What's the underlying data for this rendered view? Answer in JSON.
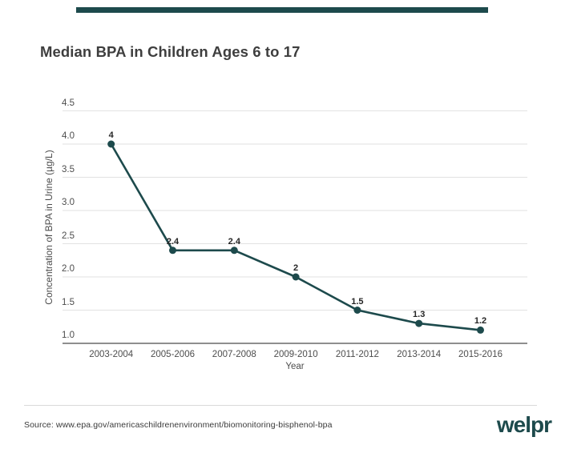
{
  "colors": {
    "accent": "#1d4a4c",
    "title_text": "#3e3e3e",
    "axis_text": "#4d4d4d",
    "grid_line": "#e2e2e2",
    "axis_line": "#8f8f8f",
    "point_label": "#262626"
  },
  "header": {
    "title": "Median BPA in Children Ages 6 to 17"
  },
  "chart_data": {
    "type": "line",
    "title": "Median BPA in Children Ages 6 to 17",
    "categories": [
      "2003-2004",
      "2005-2006",
      "2007-2008",
      "2009-2010",
      "2011-2012",
      "2013-2014",
      "2015-2016"
    ],
    "values": [
      4,
      2.4,
      2.4,
      2,
      1.5,
      1.3,
      1.2
    ],
    "point_labels": [
      "4",
      "2.4",
      "2.4",
      "2",
      "1.5",
      "1.3",
      "1.2"
    ],
    "xlabel": "Year",
    "ylabel": "Concentration of BPA in Urine (µg/L)",
    "ylim": [
      1.0,
      4.5
    ],
    "yticks": [
      "1.0",
      "1.5",
      "2.0",
      "2.5",
      "3.0",
      "3.5",
      "4.0",
      "4.5"
    ],
    "grid": "horizontal",
    "legend": "none",
    "line_color": "#1d4a4c",
    "marker": "circle"
  },
  "footer": {
    "source": "Source: www.epa.gov/americaschildrenenvironment/biomonitoring-bisphenol-bpa",
    "logo_text": "welpr"
  }
}
